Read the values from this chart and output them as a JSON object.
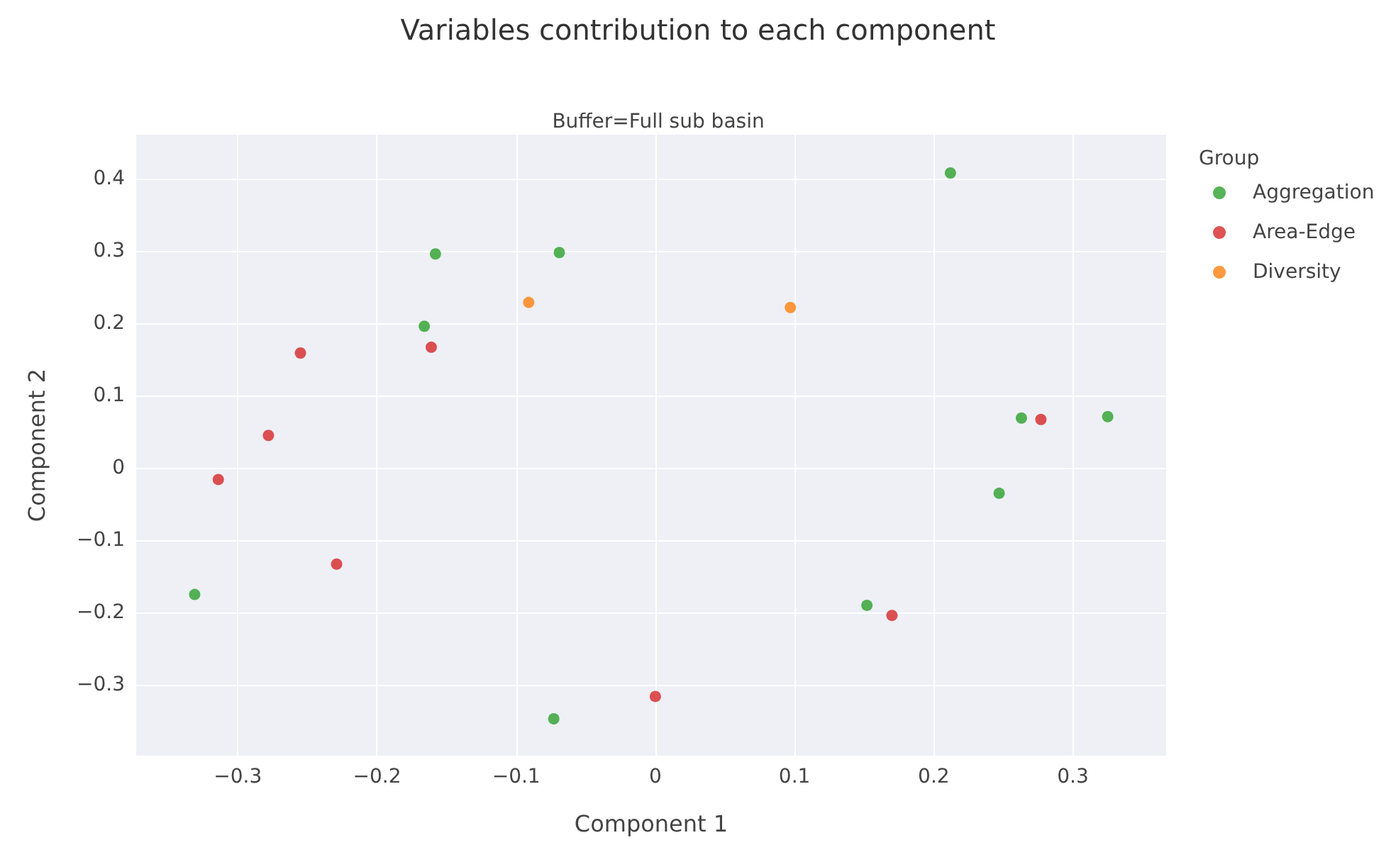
{
  "chart_data": {
    "type": "scatter",
    "title": "Variables contribution to each component",
    "subtitle": "Buffer=Full sub basin",
    "xlabel": "Component 1",
    "ylabel": "Component 2",
    "legend_title": "Group",
    "series": [
      {
        "name": "Aggregation",
        "color": "#2ca02c",
        "x": [
          0.212,
          -0.158,
          -0.069,
          -0.166,
          0.263,
          0.325,
          0.247,
          -0.331,
          0.152,
          -0.073
        ],
        "values": [
          0.408,
          0.296,
          0.298,
          0.196,
          0.069,
          0.071,
          -0.035,
          -0.175,
          -0.19,
          -0.347
        ]
      },
      {
        "name": "Area-Edge",
        "color": "#d62728",
        "x": [
          -0.255,
          -0.161,
          -0.278,
          -0.314,
          -0.229,
          0.277,
          0.17,
          0.0
        ],
        "values": [
          0.159,
          0.167,
          0.045,
          -0.016,
          -0.133,
          0.067,
          -0.204,
          -0.316
        ]
      },
      {
        "name": "Diversity",
        "color": "#ff7f0e",
        "x": [
          -0.091,
          0.097
        ],
        "values": [
          0.229,
          0.222
        ]
      }
    ],
    "xlim": [
      -0.373,
      0.367
    ],
    "ylim": [
      -0.398,
      0.461
    ],
    "xticks": [
      -0.3,
      -0.2,
      -0.1,
      0,
      0.1,
      0.2,
      0.3
    ],
    "yticks": [
      -0.3,
      -0.2,
      -0.1,
      0,
      0.1,
      0.2,
      0.3,
      0.4
    ],
    "grid": true,
    "legend": "top right",
    "marker": "circle"
  }
}
